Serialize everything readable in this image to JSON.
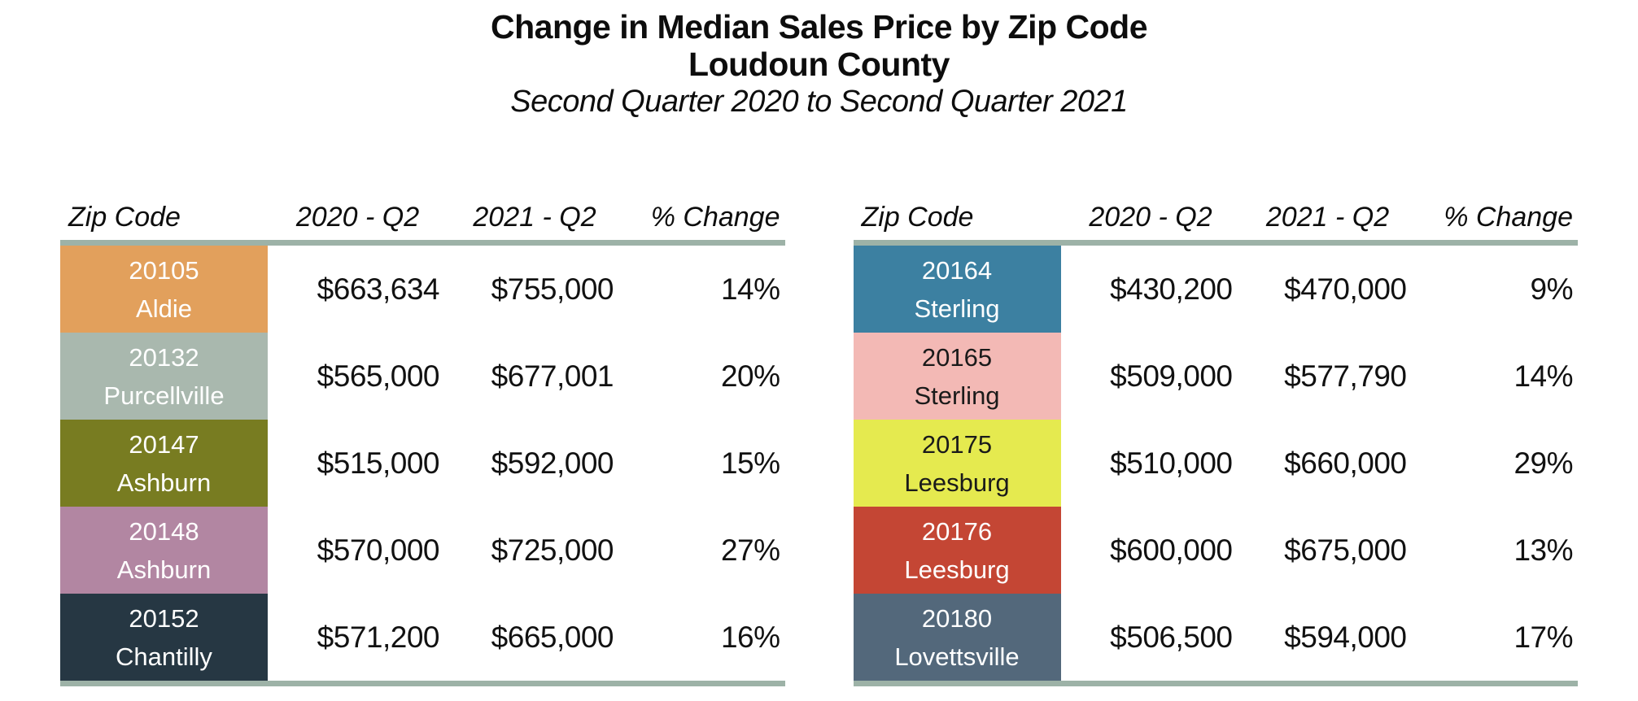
{
  "title": {
    "line1": "Change in Median Sales Price by Zip Code",
    "line2": "Loudoun County",
    "line3": "Second Quarter 2020 to Second Quarter 2021"
  },
  "table_headers": [
    "Zip Code",
    "2020 - Q2",
    "2021 - Q2",
    "% Change"
  ],
  "theme": {
    "background": "#FFFFFF",
    "divider_color": "#9DB2A7",
    "value_text_color": "#111111"
  },
  "left_table": {
    "rows": [
      {
        "zip": "20105",
        "city": "Aldie",
        "q2_2020": "$663,634",
        "q2_2021": "$755,000",
        "pct": "14%",
        "bg": "#E2A05C",
        "fg": "#FFFFFF"
      },
      {
        "zip": "20132",
        "city": "Purcellville",
        "q2_2020": "$565,000",
        "q2_2021": "$677,001",
        "pct": "20%",
        "bg": "#A9B8AE",
        "fg": "#FFFFFF"
      },
      {
        "zip": "20147",
        "city": "Ashburn",
        "q2_2020": "$515,000",
        "q2_2021": "$592,000",
        "pct": "15%",
        "bg": "#787C21",
        "fg": "#FFFFFF"
      },
      {
        "zip": "20148",
        "city": "Ashburn",
        "q2_2020": "$570,000",
        "q2_2021": "$725,000",
        "pct": "27%",
        "bg": "#B286A2",
        "fg": "#FFFFFF"
      },
      {
        "zip": "20152",
        "city": "Chantilly",
        "q2_2020": "$571,200",
        "q2_2021": "$665,000",
        "pct": "16%",
        "bg": "#263743",
        "fg": "#FFFFFF"
      }
    ]
  },
  "right_table": {
    "rows": [
      {
        "zip": "20164",
        "city": "Sterling",
        "q2_2020": "$430,200",
        "q2_2021": "$470,000",
        "pct": "9%",
        "bg": "#3C80A1",
        "fg": "#FFFFFF"
      },
      {
        "zip": "20165",
        "city": "Sterling",
        "q2_2020": "$509,000",
        "q2_2021": "$577,790",
        "pct": "14%",
        "bg": "#F3B9B5",
        "fg": "#1A1A1A"
      },
      {
        "zip": "20175",
        "city": "Leesburg",
        "q2_2020": "$510,000",
        "q2_2021": "$660,000",
        "pct": "29%",
        "bg": "#E5EA4F",
        "fg": "#1A1A1A"
      },
      {
        "zip": "20176",
        "city": "Leesburg",
        "q2_2020": "$600,000",
        "q2_2021": "$675,000",
        "pct": "13%",
        "bg": "#C44634",
        "fg": "#FFFFFF"
      },
      {
        "zip": "20180",
        "city": "Lovettsville",
        "q2_2020": "$506,500",
        "q2_2021": "$594,000",
        "pct": "17%",
        "bg": "#53687B",
        "fg": "#FFFFFF"
      }
    ]
  },
  "chart_data": {
    "type": "table",
    "title": "Change in Median Sales Price by Zip Code",
    "subtitle": "Loudoun County",
    "period": "Second Quarter 2020 to Second Quarter 2021",
    "columns": [
      "Zip Code",
      "2020 - Q2",
      "2021 - Q2",
      "% Change"
    ],
    "rows": [
      {
        "zip": "20105",
        "city": "Aldie",
        "median_2020_q2": 663634,
        "median_2021_q2": 755000,
        "pct_change": 14,
        "swatch": "#E2A05C"
      },
      {
        "zip": "20132",
        "city": "Purcellville",
        "median_2020_q2": 565000,
        "median_2021_q2": 677001,
        "pct_change": 20,
        "swatch": "#A9B8AE"
      },
      {
        "zip": "20147",
        "city": "Ashburn",
        "median_2020_q2": 515000,
        "median_2021_q2": 592000,
        "pct_change": 15,
        "swatch": "#787C21"
      },
      {
        "zip": "20148",
        "city": "Ashburn",
        "median_2020_q2": 570000,
        "median_2021_q2": 725000,
        "pct_change": 27,
        "swatch": "#B286A2"
      },
      {
        "zip": "20152",
        "city": "Chantilly",
        "median_2020_q2": 571200,
        "median_2021_q2": 665000,
        "pct_change": 16,
        "swatch": "#263743"
      },
      {
        "zip": "20164",
        "city": "Sterling",
        "median_2020_q2": 430200,
        "median_2021_q2": 470000,
        "pct_change": 9,
        "swatch": "#3C80A1"
      },
      {
        "zip": "20165",
        "city": "Sterling",
        "median_2020_q2": 509000,
        "median_2021_q2": 577790,
        "pct_change": 14,
        "swatch": "#F3B9B5"
      },
      {
        "zip": "20175",
        "city": "Leesburg",
        "median_2020_q2": 510000,
        "median_2021_q2": 660000,
        "pct_change": 29,
        "swatch": "#E5EA4F"
      },
      {
        "zip": "20176",
        "city": "Leesburg",
        "median_2020_q2": 600000,
        "median_2021_q2": 675000,
        "pct_change": 13,
        "swatch": "#C44634"
      },
      {
        "zip": "20180",
        "city": "Lovettsville",
        "median_2020_q2": 506500,
        "median_2021_q2": 594000,
        "pct_change": 17,
        "swatch": "#53687B"
      }
    ]
  }
}
